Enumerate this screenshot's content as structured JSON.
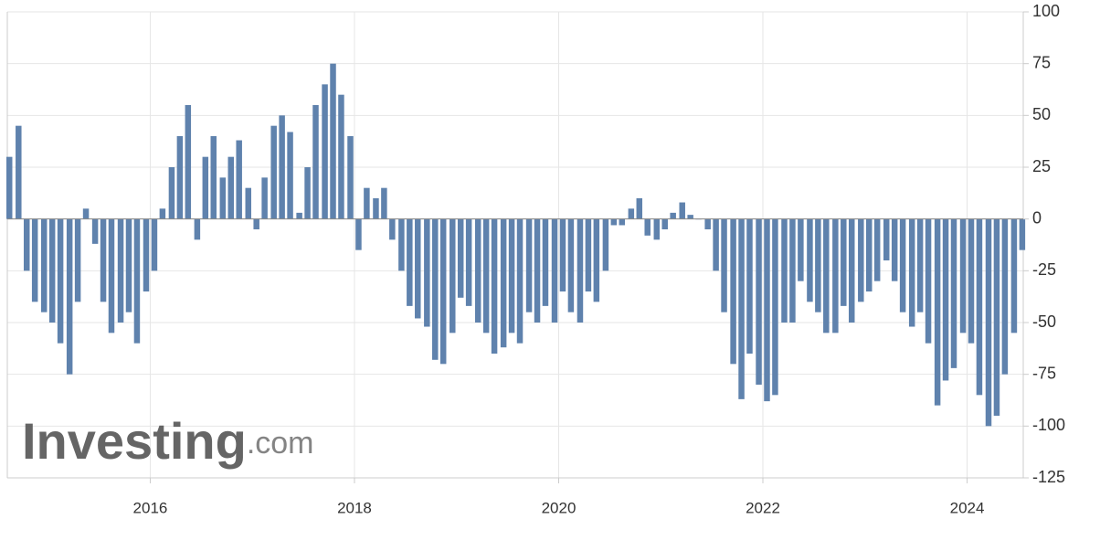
{
  "chart_data": {
    "type": "bar",
    "color": "#5f82ad",
    "watermark": {
      "brand": "Investing",
      "suffix": ".com"
    },
    "x": [
      2014.62,
      2014.71,
      2014.79,
      2014.87,
      2014.96,
      2015.04,
      2015.12,
      2015.21,
      2015.29,
      2015.37,
      2015.46,
      2015.54,
      2015.62,
      2015.71,
      2015.79,
      2015.87,
      2015.96,
      2016.04,
      2016.12,
      2016.21,
      2016.29,
      2016.37,
      2016.46,
      2016.54,
      2016.62,
      2016.71,
      2016.79,
      2016.87,
      2016.96,
      2017.04,
      2017.12,
      2017.21,
      2017.29,
      2017.37,
      2017.46,
      2017.54,
      2017.62,
      2017.71,
      2017.79,
      2017.87,
      2017.96,
      2018.04,
      2018.12,
      2018.21,
      2018.29,
      2018.37,
      2018.46,
      2018.54,
      2018.62,
      2018.71,
      2018.79,
      2018.87,
      2018.96,
      2019.04,
      2019.12,
      2019.21,
      2019.29,
      2019.37,
      2019.46,
      2019.54,
      2019.62,
      2019.71,
      2019.79,
      2019.87,
      2019.96,
      2020.04,
      2020.12,
      2020.21,
      2020.29,
      2020.37,
      2020.46,
      2020.54,
      2020.62,
      2020.71,
      2020.79,
      2020.87,
      2020.96,
      2021.04,
      2021.12,
      2021.21,
      2021.29,
      2021.37,
      2021.46,
      2021.54,
      2021.62,
      2021.71,
      2021.79,
      2021.87,
      2021.96,
      2022.04,
      2022.12,
      2022.21,
      2022.29,
      2022.37,
      2022.46,
      2022.54,
      2022.62,
      2022.71,
      2022.79,
      2022.87,
      2022.96,
      2023.04,
      2023.12,
      2023.21,
      2023.29,
      2023.37,
      2023.46,
      2023.54,
      2023.62,
      2023.71,
      2023.79,
      2023.87,
      2023.96,
      2024.04,
      2024.12,
      2024.21,
      2024.29,
      2024.37,
      2024.46,
      2024.54
    ],
    "values": [
      30,
      45,
      -25,
      -40,
      -45,
      -50,
      -60,
      -75,
      -40,
      5,
      -12,
      -40,
      -55,
      -50,
      -45,
      -60,
      -35,
      -25,
      5,
      25,
      40,
      55,
      -10,
      30,
      40,
      20,
      30,
      38,
      15,
      -5,
      20,
      45,
      50,
      42,
      3,
      25,
      55,
      65,
      75,
      60,
      40,
      -15,
      15,
      10,
      15,
      -10,
      -25,
      -42,
      -48,
      -52,
      -68,
      -70,
      -55,
      -38,
      -42,
      -50,
      -55,
      -65,
      -62,
      -55,
      -60,
      -45,
      -50,
      -42,
      -50,
      -35,
      -45,
      -50,
      -35,
      -40,
      -25,
      -3,
      -3,
      5,
      10,
      -8,
      -10,
      -5,
      3,
      8,
      2,
      0,
      -5,
      -25,
      -45,
      -70,
      -87,
      -65,
      -80,
      -88,
      -85,
      -50,
      -50,
      -30,
      -40,
      -45,
      -55,
      -55,
      -42,
      -50,
      -40,
      -35,
      -30,
      -20,
      -30,
      -45,
      -52,
      -45,
      -60,
      -90,
      -78,
      -72,
      -55,
      -60,
      -85,
      -100,
      -95,
      -75,
      -55,
      -15
    ],
    "xlim": [
      2014.6,
      2024.55
    ],
    "xticks": [
      2016,
      2018,
      2020,
      2022,
      2024
    ],
    "ylim": [
      -125,
      100
    ],
    "yticks": [
      100,
      75,
      50,
      25,
      0,
      -25,
      -50,
      -75,
      -100,
      -125
    ],
    "grid": true
  }
}
